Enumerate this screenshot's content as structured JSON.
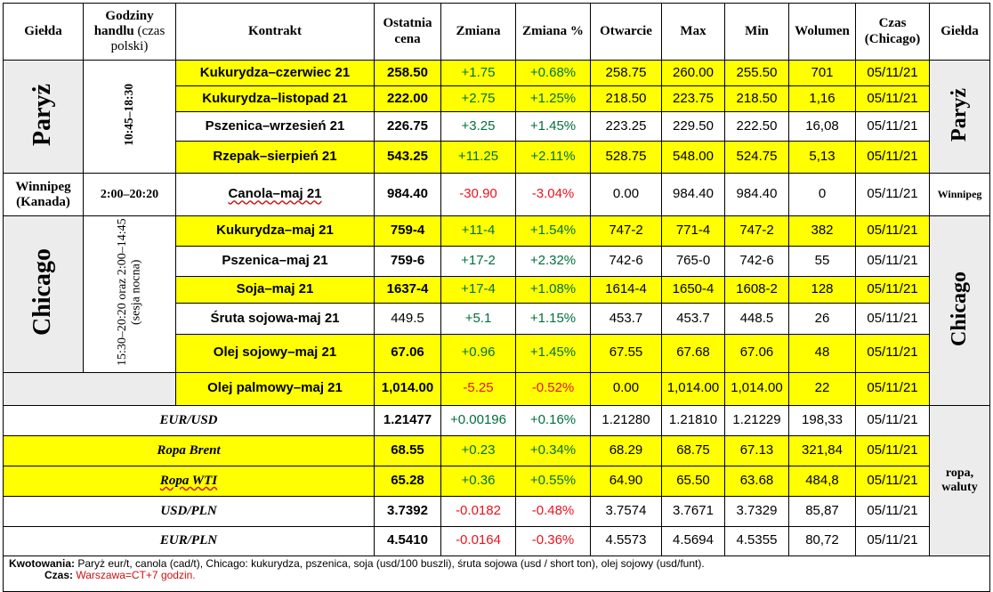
{
  "headers": {
    "exchange": "Giełda",
    "hours": "Godziny handlu",
    "hours_note": "(czas polski)",
    "contract": "Kontrakt",
    "last": "Ostatnia cena",
    "change": "Zmiana",
    "change_pct": "Zmiana %",
    "open": "Otwarcie",
    "max": "Max",
    "min": "Min",
    "volume": "Wolumen",
    "time": "Czas (Chicago)",
    "exchange_right": "Giełda"
  },
  "groups": {
    "paris": {
      "name": "Paryż",
      "hours": "10:45–18:30"
    },
    "winnipeg": {
      "name": "Winnipeg (Kanada)",
      "hours": "2:00–20:20",
      "name_right": "Winnipeg"
    },
    "chicago": {
      "name": "Chicago",
      "hours": "15:30–20:20 oraz 2:00–14:45 (sesja nocna)"
    },
    "fx": {
      "name": "ropa, waluty"
    }
  },
  "rows": [
    {
      "contract": "Kukurydza–czerwiec 21",
      "last": "258.50",
      "change": "+1.75",
      "change_pct": "+0.68%",
      "open": "258.75",
      "max": "260.00",
      "min": "255.50",
      "volume": "701",
      "time": "05/11/21"
    },
    {
      "contract": "Kukurydza–listopad 21",
      "last": "222.00",
      "change": "+2.75",
      "change_pct": "+1.25%",
      "open": "218.50",
      "max": "223.75",
      "min": "218.50",
      "volume": "1,16",
      "time": "05/11/21"
    },
    {
      "contract": "Pszenica–wrzesień 21",
      "last": "226.75",
      "change": "+3.25",
      "change_pct": "+1.45%",
      "open": "223.25",
      "max": "229.50",
      "min": "222.50",
      "volume": "16,08",
      "time": "05/11/21"
    },
    {
      "contract": "Rzepak–sierpień 21",
      "last": "543.25",
      "change": "+11.25",
      "change_pct": "+2.11%",
      "open": "528.75",
      "max": "548.00",
      "min": "524.75",
      "volume": "5,13",
      "time": "05/11/21"
    },
    {
      "contract": "Canola–maj 21",
      "last": "984.40",
      "change": "-30.90",
      "change_pct": "-3.04%",
      "open": "0.00",
      "max": "984.40",
      "min": "984.40",
      "volume": "0",
      "time": "05/11/21"
    },
    {
      "contract": "Kukurydza–maj 21",
      "last": "759-4",
      "change": "+11-4",
      "change_pct": "+1.54%",
      "open": "747-2",
      "max": "771-4",
      "min": "747-2",
      "volume": "382",
      "time": "05/11/21"
    },
    {
      "contract": "Pszenica–maj 21",
      "last": "759-6",
      "change": "+17-2",
      "change_pct": "+2.32%",
      "open": "742-6",
      "max": "765-0",
      "min": "742-6",
      "volume": "55",
      "time": "05/11/21"
    },
    {
      "contract": "Soja–maj 21",
      "last": "1637-4",
      "change": "+17-4",
      "change_pct": "+1.08%",
      "open": "1614-4",
      "max": "1650-4",
      "min": "1608-2",
      "volume": "128",
      "time": "05/11/21"
    },
    {
      "contract": "Śruta sojowa-maj 21",
      "last": "449.5",
      "change": "+5.1",
      "change_pct": "+1.15%",
      "open": "453.7",
      "max": "453.7",
      "min": "448.5",
      "volume": "26",
      "time": "05/11/21"
    },
    {
      "contract": "Olej sojowy–maj 21",
      "last": "67.06",
      "change": "+0.96",
      "change_pct": "+1.45%",
      "open": "67.55",
      "max": "67.68",
      "min": "67.06",
      "volume": "48",
      "time": "05/11/21"
    },
    {
      "contract": "Olej palmowy–maj 21",
      "last": "1,014.00",
      "change": "-5.25",
      "change_pct": "-0.52%",
      "open": "0.00",
      "max": "1,014.00",
      "min": "1,014.00",
      "volume": "22",
      "time": "05/11/21"
    },
    {
      "contract": "EUR/USD",
      "last": "1.21477",
      "change": "+0.00196",
      "change_pct": "+0.16%",
      "open": "1.21280",
      "max": "1.21810",
      "min": "1.21229",
      "volume": "198,33",
      "time": "05/11/21"
    },
    {
      "contract": "Ropa Brent",
      "last": "68.55",
      "change": "+0.23",
      "change_pct": "+0.34%",
      "open": "68.29",
      "max": "68.75",
      "min": "67.13",
      "volume": "321,84",
      "time": "05/11/21"
    },
    {
      "contract": "Ropa WTI",
      "last": "65.28",
      "change": "+0.36",
      "change_pct": "+0.55%",
      "open": "64.90",
      "max": "65.50",
      "min": "63.68",
      "volume": "484,8",
      "time": "05/11/21"
    },
    {
      "contract": "USD/PLN",
      "last": "3.7392",
      "change": "-0.0182",
      "change_pct": "-0.48%",
      "open": "3.7574",
      "max": "3.7671",
      "min": "3.7329",
      "volume": "85,87",
      "time": "05/11/21"
    },
    {
      "contract": "EUR/PLN",
      "last": "4.5410",
      "change": "-0.0164",
      "change_pct": "-0.36%",
      "open": "4.5573",
      "max": "4.5694",
      "min": "4.5355",
      "volume": "80,72",
      "time": "05/11/21"
    }
  ],
  "footer": {
    "quotes_label": "Kwotowania:",
    "quotes_text": "Paryż eur/t, canola (cad/t), Chicago: kukurydza, pszenica, soja (usd/100 buszli), śruta sojowa (usd / short ton), olej sojowy (usd/funt).",
    "time_label": "Czas:",
    "time_text": "Warszawa=CT+7 godzin."
  },
  "colors": {
    "highlight": "#ffff00",
    "positive": "#00703c",
    "negative": "#e8141d",
    "side_panel": "#ececec"
  }
}
